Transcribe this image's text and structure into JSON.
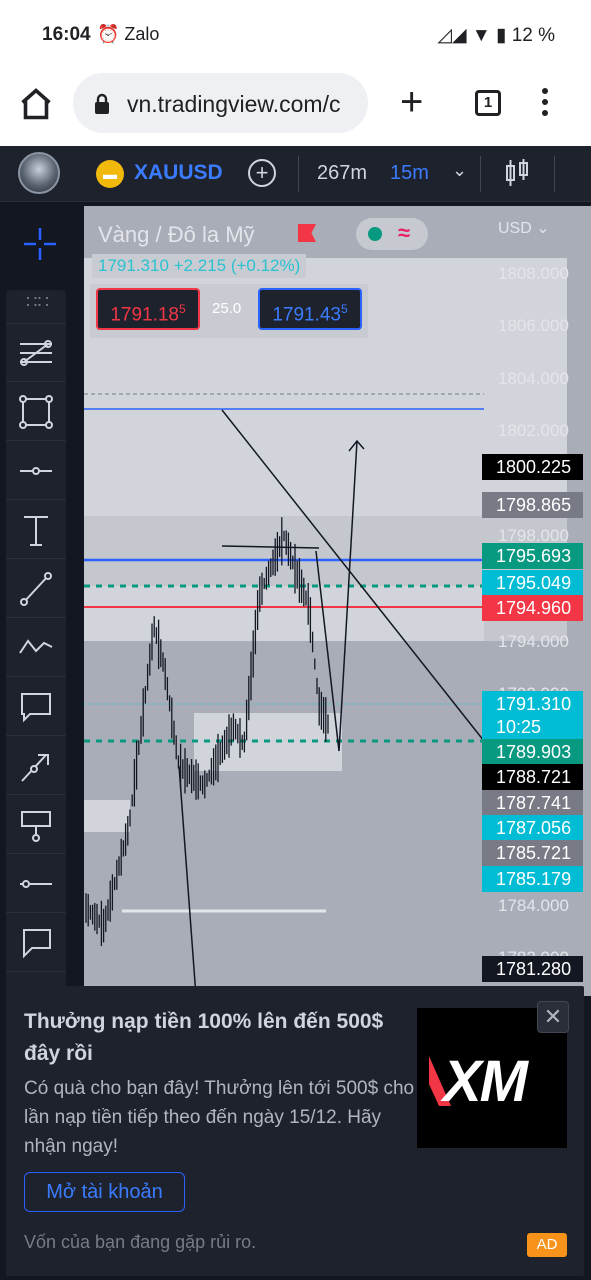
{
  "status": {
    "time": "16:04",
    "notif_icons": "⏰ Zalo",
    "battery": "12 %"
  },
  "browser": {
    "url": "vn.tradingview.com/c",
    "tab_count": "1"
  },
  "tv_header": {
    "symbol": "XAUUSD",
    "interval_a": "267m",
    "interval_b": "15m"
  },
  "chart": {
    "title": "Vàng / Đô la Mỹ",
    "currency": "USD",
    "change_line": "1791.310  +2.215 (+0.12%)",
    "bid": "1791.18",
    "bid_sup": "5",
    "spread": "25.0",
    "ask": "1791.43",
    "ask_sup": "5",
    "y_ticks": [
      "1808.000",
      "1806.000",
      "1804.000",
      "1802.000",
      "1798.000",
      "1794.000",
      "1792.000",
      "1784.000",
      "1782.000"
    ],
    "price_tags": [
      {
        "value": "1800.225",
        "color": "#000000"
      },
      {
        "value": "1798.865",
        "color": "#787b86"
      },
      {
        "value": "1795.693",
        "color": "#089981"
      },
      {
        "value": "1795.049",
        "color": "#00bcd4"
      },
      {
        "value": "1794.960",
        "color": "#f23645"
      },
      {
        "value": "1791.310",
        "color": "#00bcd4"
      },
      {
        "value": "10:25",
        "color": "#00bcd4"
      },
      {
        "value": "1789.903",
        "color": "#089981"
      },
      {
        "value": "1788.721",
        "color": "#000000"
      },
      {
        "value": "1787.741",
        "color": "#787b86"
      },
      {
        "value": "1787.056",
        "color": "#00bcd4"
      },
      {
        "value": "1785.721",
        "color": "#787b86"
      },
      {
        "value": "1785.179",
        "color": "#00bcd4"
      },
      {
        "value": "1781.280",
        "color": "#131722"
      }
    ]
  },
  "ad": {
    "title": "Thưởng nạp tiền 100% lên đến 500$ đây rồi",
    "body": "Có quà cho bạn đây! Thưởng lên tới 500$ cho lần nạp tiền tiếp theo đến ngày 15/12. Hãy nhận ngay!",
    "cta": "Mở tài khoản",
    "risk": "Vốn của bạn đang gặp rủi ro.",
    "badge": "AD",
    "logo": "XM"
  }
}
